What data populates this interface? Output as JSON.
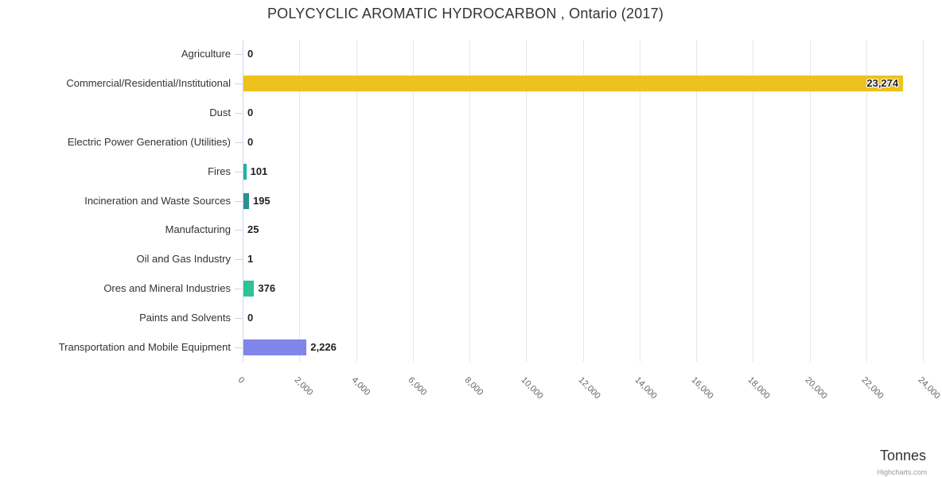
{
  "title": "POLYCYCLIC AROMATIC HYDROCARBON , Ontario (2017)",
  "axis_title": "Tonnes",
  "credit": "Highcharts.com",
  "colors": {
    "axis_line": "#ccd6eb",
    "gridline": "#e6e6e6",
    "title_text": "#333333",
    "category_text": "#333333",
    "tick_text": "#666666",
    "value_text": "#222222",
    "credit_text": "#999999",
    "default_bar": "#7cb5ec"
  },
  "chart_data": {
    "type": "bar",
    "orientation": "horizontal",
    "title": "POLYCYCLIC AROMATIC HYDROCARBON , Ontario (2017)",
    "xlabel": "Tonnes",
    "ylabel": "",
    "xlim": [
      0,
      24000
    ],
    "x_ticks": [
      0,
      2000,
      4000,
      6000,
      8000,
      10000,
      12000,
      14000,
      16000,
      18000,
      20000,
      22000,
      24000
    ],
    "x_tick_labels": [
      "0",
      "2,000",
      "4,000",
      "6,000",
      "8,000",
      "10,000",
      "12,000",
      "14,000",
      "16,000",
      "18,000",
      "20,000",
      "22,000",
      "24,000"
    ],
    "grid": true,
    "legend": false,
    "categories": [
      "Agriculture",
      "Commercial/Residential/Institutional",
      "Dust",
      "Electric Power Generation (Utilities)",
      "Fires",
      "Incineration and Waste Sources",
      "Manufacturing",
      "Oil and Gas Industry",
      "Ores and Mineral Industries",
      "Paints and Solvents",
      "Transportation and Mobile Equipment"
    ],
    "values": [
      0,
      23274,
      0,
      0,
      101,
      195,
      25,
      1,
      376,
      0,
      2226
    ],
    "value_labels": [
      "0",
      "23,274",
      "0",
      "0",
      "101",
      "195",
      "25",
      "1",
      "376",
      "0",
      "2,226"
    ],
    "bar_colors": [
      null,
      "#edc21f",
      null,
      null,
      "#1eb2a1",
      "#2b908f",
      null,
      null,
      "#2bc492",
      null,
      "#8085e9"
    ]
  }
}
